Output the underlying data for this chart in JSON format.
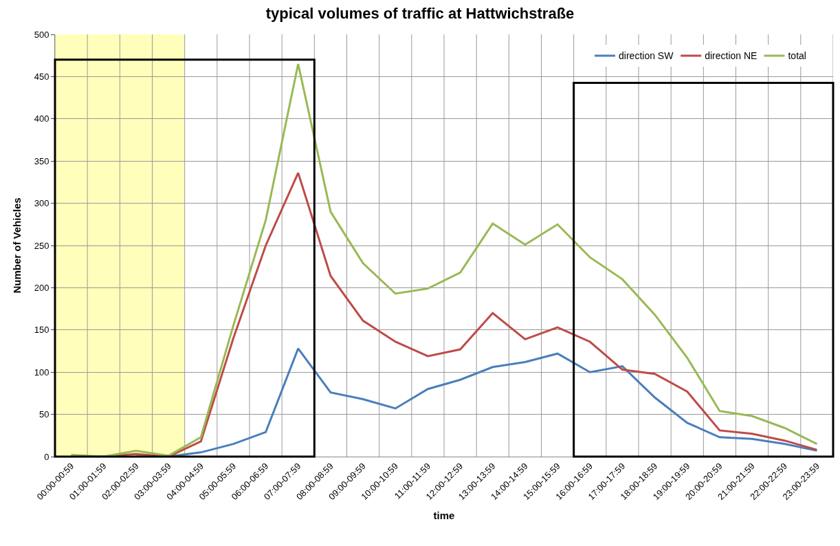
{
  "chart_data": {
    "type": "line",
    "title": "typical volumes of traffic at Hattwichstraße",
    "xlabel": "time",
    "ylabel": "Number of Vehicles",
    "categories": [
      "00:00-00:59",
      "01:00-01:59",
      "02:00-02:59",
      "03:00-03:59",
      "04:00-04:59",
      "05:00-05:59",
      "06:00-06:59",
      "07:00-07:59",
      "08:00-08:59",
      "09:00-09:59",
      "10:00-10:59",
      "11:00-11:59",
      "12:00-12:59",
      "13:00-13:59",
      "14:00-14:59",
      "15:00-15:59",
      "16:00-16:59",
      "17:00-17:59",
      "18:00-18:59",
      "19:00-19:59",
      "20:00-20:59",
      "21:00-21:59",
      "22:00-22:59",
      "23:00-23:59"
    ],
    "series": [
      {
        "name": "direction SW",
        "color": "#4a7ebb",
        "values": [
          null,
          null,
          0,
          0,
          5,
          15,
          29,
          128,
          76,
          68,
          57,
          80,
          91,
          106,
          112,
          122,
          100,
          107,
          70,
          40,
          23,
          21,
          15,
          7
        ]
      },
      {
        "name": "direction NE",
        "color": "#be4b48",
        "values": [
          1,
          0,
          3,
          0,
          18,
          140,
          250,
          336,
          214,
          161,
          136,
          119,
          127,
          170,
          139,
          153,
          136,
          103,
          98,
          77,
          31,
          27,
          19,
          8
        ]
      },
      {
        "name": "total",
        "color": "#98b954",
        "values": [
          2,
          0,
          7,
          1,
          23,
          155,
          280,
          465,
          290,
          229,
          193,
          199,
          218,
          276,
          251,
          275,
          236,
          210,
          168,
          117,
          54,
          48,
          34,
          15
        ]
      }
    ],
    "ylim": [
      0,
      500
    ],
    "yticks": [
      0,
      50,
      100,
      150,
      200,
      250,
      300,
      350,
      400,
      450,
      500
    ],
    "grid": true,
    "legend": "top right",
    "marker": "none",
    "line_style": "solid",
    "bands": [
      {
        "axis": "x",
        "from": "00:00-00:59",
        "to": "03:00-03:59",
        "color": "#ffffaa"
      }
    ]
  }
}
